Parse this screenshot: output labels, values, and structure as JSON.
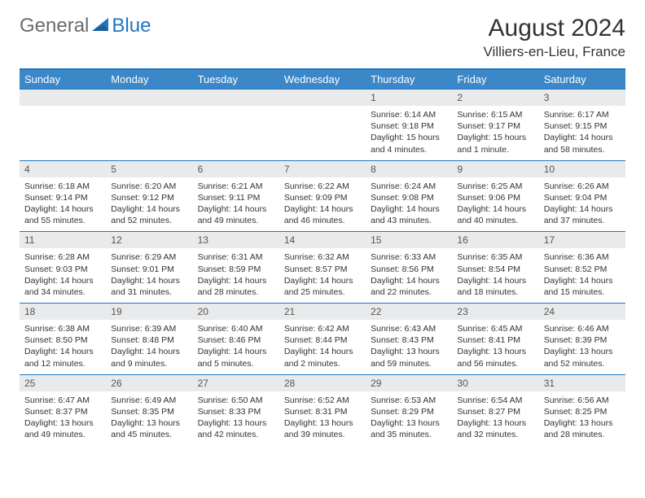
{
  "logo": {
    "general": "General",
    "blue": "Blue"
  },
  "title": "August 2024",
  "location": "Villiers-en-Lieu, France",
  "colors": {
    "header_bg": "#3b87c8",
    "border": "#2176c0",
    "daynum_bg": "#e9eaeb",
    "text": "#333333"
  },
  "day_names": [
    "Sunday",
    "Monday",
    "Tuesday",
    "Wednesday",
    "Thursday",
    "Friday",
    "Saturday"
  ],
  "weeks": [
    [
      null,
      null,
      null,
      null,
      {
        "n": "1",
        "sunrise": "6:14 AM",
        "sunset": "9:18 PM",
        "daylight": "15 hours and 4 minutes."
      },
      {
        "n": "2",
        "sunrise": "6:15 AM",
        "sunset": "9:17 PM",
        "daylight": "15 hours and 1 minute."
      },
      {
        "n": "3",
        "sunrise": "6:17 AM",
        "sunset": "9:15 PM",
        "daylight": "14 hours and 58 minutes."
      }
    ],
    [
      {
        "n": "4",
        "sunrise": "6:18 AM",
        "sunset": "9:14 PM",
        "daylight": "14 hours and 55 minutes."
      },
      {
        "n": "5",
        "sunrise": "6:20 AM",
        "sunset": "9:12 PM",
        "daylight": "14 hours and 52 minutes."
      },
      {
        "n": "6",
        "sunrise": "6:21 AM",
        "sunset": "9:11 PM",
        "daylight": "14 hours and 49 minutes."
      },
      {
        "n": "7",
        "sunrise": "6:22 AM",
        "sunset": "9:09 PM",
        "daylight": "14 hours and 46 minutes."
      },
      {
        "n": "8",
        "sunrise": "6:24 AM",
        "sunset": "9:08 PM",
        "daylight": "14 hours and 43 minutes."
      },
      {
        "n": "9",
        "sunrise": "6:25 AM",
        "sunset": "9:06 PM",
        "daylight": "14 hours and 40 minutes."
      },
      {
        "n": "10",
        "sunrise": "6:26 AM",
        "sunset": "9:04 PM",
        "daylight": "14 hours and 37 minutes."
      }
    ],
    [
      {
        "n": "11",
        "sunrise": "6:28 AM",
        "sunset": "9:03 PM",
        "daylight": "14 hours and 34 minutes."
      },
      {
        "n": "12",
        "sunrise": "6:29 AM",
        "sunset": "9:01 PM",
        "daylight": "14 hours and 31 minutes."
      },
      {
        "n": "13",
        "sunrise": "6:31 AM",
        "sunset": "8:59 PM",
        "daylight": "14 hours and 28 minutes."
      },
      {
        "n": "14",
        "sunrise": "6:32 AM",
        "sunset": "8:57 PM",
        "daylight": "14 hours and 25 minutes."
      },
      {
        "n": "15",
        "sunrise": "6:33 AM",
        "sunset": "8:56 PM",
        "daylight": "14 hours and 22 minutes."
      },
      {
        "n": "16",
        "sunrise": "6:35 AM",
        "sunset": "8:54 PM",
        "daylight": "14 hours and 18 minutes."
      },
      {
        "n": "17",
        "sunrise": "6:36 AM",
        "sunset": "8:52 PM",
        "daylight": "14 hours and 15 minutes."
      }
    ],
    [
      {
        "n": "18",
        "sunrise": "6:38 AM",
        "sunset": "8:50 PM",
        "daylight": "14 hours and 12 minutes."
      },
      {
        "n": "19",
        "sunrise": "6:39 AM",
        "sunset": "8:48 PM",
        "daylight": "14 hours and 9 minutes."
      },
      {
        "n": "20",
        "sunrise": "6:40 AM",
        "sunset": "8:46 PM",
        "daylight": "14 hours and 5 minutes."
      },
      {
        "n": "21",
        "sunrise": "6:42 AM",
        "sunset": "8:44 PM",
        "daylight": "14 hours and 2 minutes."
      },
      {
        "n": "22",
        "sunrise": "6:43 AM",
        "sunset": "8:43 PM",
        "daylight": "13 hours and 59 minutes."
      },
      {
        "n": "23",
        "sunrise": "6:45 AM",
        "sunset": "8:41 PM",
        "daylight": "13 hours and 56 minutes."
      },
      {
        "n": "24",
        "sunrise": "6:46 AM",
        "sunset": "8:39 PM",
        "daylight": "13 hours and 52 minutes."
      }
    ],
    [
      {
        "n": "25",
        "sunrise": "6:47 AM",
        "sunset": "8:37 PM",
        "daylight": "13 hours and 49 minutes."
      },
      {
        "n": "26",
        "sunrise": "6:49 AM",
        "sunset": "8:35 PM",
        "daylight": "13 hours and 45 minutes."
      },
      {
        "n": "27",
        "sunrise": "6:50 AM",
        "sunset": "8:33 PM",
        "daylight": "13 hours and 42 minutes."
      },
      {
        "n": "28",
        "sunrise": "6:52 AM",
        "sunset": "8:31 PM",
        "daylight": "13 hours and 39 minutes."
      },
      {
        "n": "29",
        "sunrise": "6:53 AM",
        "sunset": "8:29 PM",
        "daylight": "13 hours and 35 minutes."
      },
      {
        "n": "30",
        "sunrise": "6:54 AM",
        "sunset": "8:27 PM",
        "daylight": "13 hours and 32 minutes."
      },
      {
        "n": "31",
        "sunrise": "6:56 AM",
        "sunset": "8:25 PM",
        "daylight": "13 hours and 28 minutes."
      }
    ]
  ]
}
